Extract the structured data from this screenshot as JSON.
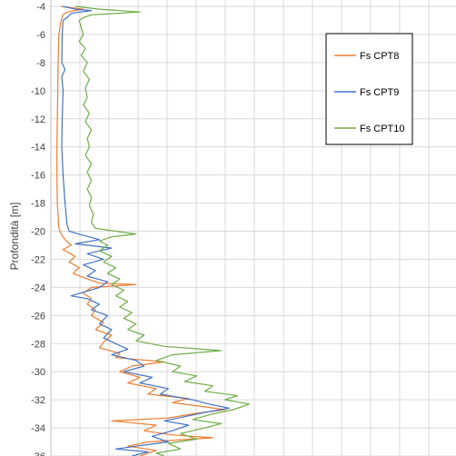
{
  "chart_data": {
    "type": "line",
    "title": "",
    "xlabel": "",
    "ylabel": "Profondità [m]",
    "ylim": [
      -36,
      -4
    ],
    "yticks": [
      -4,
      -6,
      -8,
      -10,
      -12,
      -14,
      -16,
      -18,
      -20,
      -22,
      -24,
      -26,
      -28,
      -30,
      -32,
      -34,
      -36
    ],
    "xlim": [
      0,
      10
    ],
    "grid": true,
    "legend_position": "right",
    "series": [
      {
        "name": "Fs CPT8",
        "color": "#ed7d31",
        "points": [
          [
            0.25,
            -4.0
          ],
          [
            0.5,
            -4.1
          ],
          [
            0.8,
            -4.2
          ],
          [
            0.4,
            -4.4
          ],
          [
            0.3,
            -4.6
          ],
          [
            0.25,
            -5.0
          ],
          [
            0.2,
            -6
          ],
          [
            0.18,
            -8
          ],
          [
            0.17,
            -10
          ],
          [
            0.16,
            -12
          ],
          [
            0.15,
            -14
          ],
          [
            0.15,
            -16
          ],
          [
            0.16,
            -18
          ],
          [
            0.2,
            -19.8
          ],
          [
            0.25,
            -20.2
          ],
          [
            0.35,
            -20.6
          ],
          [
            0.5,
            -21.0
          ],
          [
            0.3,
            -21.3
          ],
          [
            0.6,
            -21.8
          ],
          [
            0.45,
            -22.2
          ],
          [
            0.7,
            -22.6
          ],
          [
            0.55,
            -23.0
          ],
          [
            0.9,
            -23.4
          ],
          [
            1.2,
            -23.7
          ],
          [
            2.1,
            -23.8
          ],
          [
            1.0,
            -24.0
          ],
          [
            0.8,
            -24.4
          ],
          [
            1.0,
            -24.8
          ],
          [
            0.9,
            -25.2
          ],
          [
            1.1,
            -25.6
          ],
          [
            1.0,
            -26.0
          ],
          [
            1.3,
            -26.5
          ],
          [
            1.1,
            -27.0
          ],
          [
            1.5,
            -27.4
          ],
          [
            1.3,
            -27.9
          ],
          [
            1.2,
            -28.3
          ],
          [
            1.7,
            -28.7
          ],
          [
            1.6,
            -29.0
          ],
          [
            2.8,
            -29.3
          ],
          [
            2.0,
            -29.6
          ],
          [
            1.7,
            -30.0
          ],
          [
            2.2,
            -30.4
          ],
          [
            1.9,
            -30.8
          ],
          [
            2.6,
            -31.2
          ],
          [
            2.4,
            -31.6
          ],
          [
            3.4,
            -31.9
          ],
          [
            3.0,
            -32.2
          ],
          [
            3.8,
            -32.5
          ],
          [
            4.3,
            -32.7
          ],
          [
            3.5,
            -33.0
          ],
          [
            2.9,
            -33.3
          ],
          [
            1.5,
            -33.5
          ],
          [
            2.6,
            -33.8
          ],
          [
            2.3,
            -34.2
          ],
          [
            3.0,
            -34.5
          ],
          [
            4.0,
            -34.7
          ],
          [
            2.4,
            -35.0
          ],
          [
            1.9,
            -35.3
          ],
          [
            2.6,
            -35.6
          ],
          [
            2.2,
            -36.0
          ]
        ]
      },
      {
        "name": "Fs CPT9",
        "color": "#4472c4",
        "points": [
          [
            0.3,
            -4.0
          ],
          [
            0.6,
            -4.2
          ],
          [
            1.0,
            -4.3
          ],
          [
            0.5,
            -4.5
          ],
          [
            0.4,
            -4.8
          ],
          [
            0.3,
            -5.0
          ],
          [
            0.28,
            -6
          ],
          [
            0.27,
            -8
          ],
          [
            0.35,
            -8.5
          ],
          [
            0.27,
            -9
          ],
          [
            0.3,
            -10
          ],
          [
            0.28,
            -12
          ],
          [
            0.27,
            -14
          ],
          [
            0.3,
            -16
          ],
          [
            0.35,
            -18
          ],
          [
            0.4,
            -19.5
          ],
          [
            0.45,
            -20.0
          ],
          [
            0.8,
            -20.3
          ],
          [
            1.2,
            -20.6
          ],
          [
            0.6,
            -20.9
          ],
          [
            1.5,
            -21.2
          ],
          [
            0.9,
            -21.6
          ],
          [
            1.3,
            -22.0
          ],
          [
            0.8,
            -22.4
          ],
          [
            1.1,
            -22.8
          ],
          [
            0.9,
            -23.2
          ],
          [
            1.4,
            -23.6
          ],
          [
            1.2,
            -24.0
          ],
          [
            0.5,
            -24.6
          ],
          [
            0.9,
            -24.8
          ],
          [
            1.2,
            -25.2
          ],
          [
            1.0,
            -25.6
          ],
          [
            1.4,
            -26.0
          ],
          [
            1.2,
            -26.6
          ],
          [
            1.5,
            -27.0
          ],
          [
            1.3,
            -27.6
          ],
          [
            1.6,
            -28.0
          ],
          [
            1.9,
            -28.4
          ],
          [
            1.5,
            -28.8
          ],
          [
            2.1,
            -29.2
          ],
          [
            2.3,
            -29.6
          ],
          [
            1.8,
            -30.0
          ],
          [
            2.5,
            -30.4
          ],
          [
            2.2,
            -30.8
          ],
          [
            2.9,
            -31.2
          ],
          [
            2.7,
            -31.6
          ],
          [
            3.5,
            -32.0
          ],
          [
            3.9,
            -32.3
          ],
          [
            4.4,
            -32.6
          ],
          [
            3.8,
            -32.9
          ],
          [
            3.3,
            -33.2
          ],
          [
            2.8,
            -33.5
          ],
          [
            3.4,
            -33.8
          ],
          [
            3.0,
            -34.2
          ],
          [
            2.5,
            -34.6
          ],
          [
            2.9,
            -35.0
          ],
          [
            2.1,
            -35.3
          ],
          [
            1.6,
            -35.5
          ],
          [
            2.4,
            -35.7
          ],
          [
            2.0,
            -36.0
          ]
        ]
      },
      {
        "name": "Fs CPT10",
        "color": "#70ad47",
        "points": [
          [
            0.6,
            -4.0
          ],
          [
            1.2,
            -4.2
          ],
          [
            2.2,
            -4.4
          ],
          [
            1.0,
            -4.6
          ],
          [
            0.8,
            -4.8
          ],
          [
            0.7,
            -5.0
          ],
          [
            0.75,
            -5.5
          ],
          [
            0.8,
            -6.0
          ],
          [
            0.7,
            -6.5
          ],
          [
            0.85,
            -7
          ],
          [
            0.75,
            -7.5
          ],
          [
            0.9,
            -8
          ],
          [
            0.8,
            -8.6
          ],
          [
            0.95,
            -9.2
          ],
          [
            0.85,
            -9.8
          ],
          [
            0.9,
            -10.5
          ],
          [
            0.8,
            -11
          ],
          [
            0.95,
            -11.6
          ],
          [
            0.85,
            -12.2
          ],
          [
            1.0,
            -12.8
          ],
          [
            0.9,
            -13.4
          ],
          [
            0.95,
            -14
          ],
          [
            0.85,
            -14.6
          ],
          [
            1.0,
            -15.2
          ],
          [
            0.9,
            -15.8
          ],
          [
            1.0,
            -16.4
          ],
          [
            0.9,
            -17
          ],
          [
            1.0,
            -17.6
          ],
          [
            0.95,
            -18.2
          ],
          [
            1.05,
            -18.8
          ],
          [
            1.0,
            -19.4
          ],
          [
            1.1,
            -19.8
          ],
          [
            1.6,
            -20.0
          ],
          [
            2.1,
            -20.2
          ],
          [
            1.5,
            -20.4
          ],
          [
            1.2,
            -20.7
          ],
          [
            1.4,
            -21.0
          ],
          [
            1.2,
            -21.4
          ],
          [
            1.5,
            -21.8
          ],
          [
            1.3,
            -22.2
          ],
          [
            1.6,
            -22.6
          ],
          [
            1.4,
            -23.0
          ],
          [
            1.7,
            -23.4
          ],
          [
            1.5,
            -23.8
          ],
          [
            1.8,
            -24.2
          ],
          [
            1.6,
            -24.6
          ],
          [
            1.9,
            -25.0
          ],
          [
            1.7,
            -25.4
          ],
          [
            2.0,
            -25.8
          ],
          [
            1.8,
            -26.2
          ],
          [
            2.1,
            -26.6
          ],
          [
            1.9,
            -27.0
          ],
          [
            2.3,
            -27.4
          ],
          [
            2.1,
            -27.8
          ],
          [
            2.8,
            -28.2
          ],
          [
            4.2,
            -28.5
          ],
          [
            3.0,
            -28.8
          ],
          [
            2.6,
            -29.2
          ],
          [
            3.2,
            -29.6
          ],
          [
            3.0,
            -30.0
          ],
          [
            3.6,
            -30.3
          ],
          [
            3.3,
            -30.7
          ],
          [
            4.0,
            -31.0
          ],
          [
            3.8,
            -31.4
          ],
          [
            4.6,
            -31.7
          ],
          [
            4.3,
            -32.0
          ],
          [
            4.9,
            -32.3
          ],
          [
            4.5,
            -32.7
          ],
          [
            4.0,
            -33.0
          ],
          [
            3.5,
            -33.4
          ],
          [
            4.2,
            -33.7
          ],
          [
            3.8,
            -34.0
          ],
          [
            3.2,
            -34.4
          ],
          [
            3.6,
            -34.8
          ],
          [
            2.9,
            -35.1
          ],
          [
            3.2,
            -35.5
          ],
          [
            2.6,
            -35.8
          ],
          [
            2.8,
            -36.0
          ]
        ]
      }
    ]
  }
}
